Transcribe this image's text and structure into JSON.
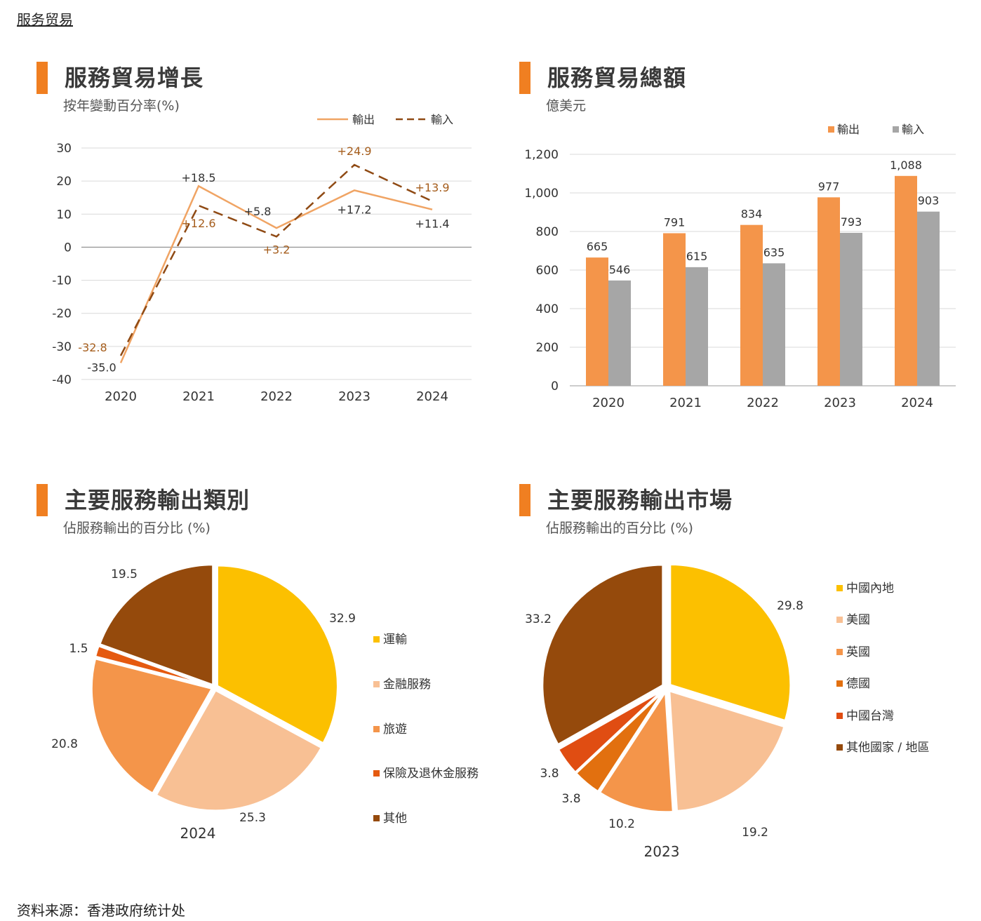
{
  "page": {
    "link_text": "服务贸易",
    "source": "资料来源：香港政府统计处"
  },
  "colors": {
    "accent": "#f07f21",
    "export": "#f4954a",
    "import": "#a6a6a6",
    "line_export": "#f0a464",
    "line_import": "#8f4a14"
  },
  "panels": {
    "growth": {
      "title": "服務貿易增長",
      "subtitle": "按年變動百分率(%)"
    },
    "total": {
      "title": "服務貿易總額",
      "subtitle": "億美元"
    },
    "categories": {
      "title": "主要服務輸出類別",
      "subtitle": "佔服務輸出的百分比 (%)"
    },
    "markets": {
      "title": "主要服務輸出市場",
      "subtitle": "佔服務輸出的百分比 (%)"
    }
  },
  "chart_data": [
    {
      "type": "line",
      "x": [
        "2020",
        "2021",
        "2022",
        "2023",
        "2024"
      ],
      "series": [
        {
          "name": "輸出",
          "values": [
            -35.0,
            18.5,
            5.8,
            17.2,
            11.4
          ],
          "labels": [
            "-35.0",
            "+18.5",
            "+5.8",
            "+17.2",
            "+11.4"
          ],
          "style": "solid",
          "color": "#f0a464"
        },
        {
          "name": "輸入",
          "values": [
            -32.8,
            12.6,
            3.2,
            24.9,
            13.9
          ],
          "labels": [
            "-32.8",
            "+12.6",
            "+3.2",
            "+24.9",
            "+13.9"
          ],
          "style": "dashed",
          "color": "#8f4a14"
        }
      ],
      "ylim": [
        -40,
        30
      ],
      "yticks": [
        "30",
        "20",
        "10",
        "0",
        "-10",
        "-20",
        "-30",
        "-40"
      ],
      "legend_position": "top-right",
      "grid": true
    },
    {
      "type": "bar",
      "categories": [
        "2020",
        "2021",
        "2022",
        "2023",
        "2024"
      ],
      "series": [
        {
          "name": "輸出",
          "values": [
            665,
            791,
            834,
            977,
            1088
          ],
          "labels": [
            "665",
            "791",
            "834",
            "977",
            "1,088"
          ],
          "color": "#f4954a"
        },
        {
          "name": "輸入",
          "values": [
            546,
            615,
            635,
            793,
            903
          ],
          "labels": [
            "546",
            "615",
            "635",
            "793",
            "903"
          ],
          "color": "#a6a6a6"
        }
      ],
      "ylim": [
        0,
        1200
      ],
      "yticks": [
        "1,200",
        "1,000",
        "800",
        "600",
        "400",
        "200",
        "0"
      ],
      "legend_position": "top-right",
      "grid": true
    },
    {
      "type": "pie",
      "caption": "2024",
      "slices": [
        {
          "name": "運輸",
          "value": 32.9,
          "label": "32.9",
          "color": "#fcc000"
        },
        {
          "name": "金融服務",
          "value": 25.3,
          "label": "25.3",
          "color": "#f8c094"
        },
        {
          "name": "旅遊",
          "value": 20.8,
          "label": "20.8",
          "color": "#f4954a"
        },
        {
          "name": "保險及退休金服務",
          "value": 1.5,
          "label": "1.5",
          "color": "#e55a10"
        },
        {
          "name": "其他",
          "value": 19.5,
          "label": "19.5",
          "color": "#954a0c"
        }
      ],
      "legend_position": "right"
    },
    {
      "type": "pie",
      "caption": "2023",
      "slices": [
        {
          "name": "中國內地",
          "value": 29.8,
          "label": "29.8",
          "color": "#fcc000"
        },
        {
          "name": "美國",
          "value": 19.2,
          "label": "19.2",
          "color": "#f8c094"
        },
        {
          "name": "英國",
          "value": 10.2,
          "label": "10.2",
          "color": "#f4954a"
        },
        {
          "name": "德國",
          "value": 3.8,
          "label": "3.8",
          "color": "#e2700f"
        },
        {
          "name": "中國台灣",
          "value": 3.8,
          "label": "3.8",
          "color": "#e04d12"
        },
        {
          "name": "其他國家 / 地區",
          "value": 33.2,
          "label": "33.2",
          "color": "#954a0c"
        }
      ],
      "legend_position": "right"
    }
  ]
}
